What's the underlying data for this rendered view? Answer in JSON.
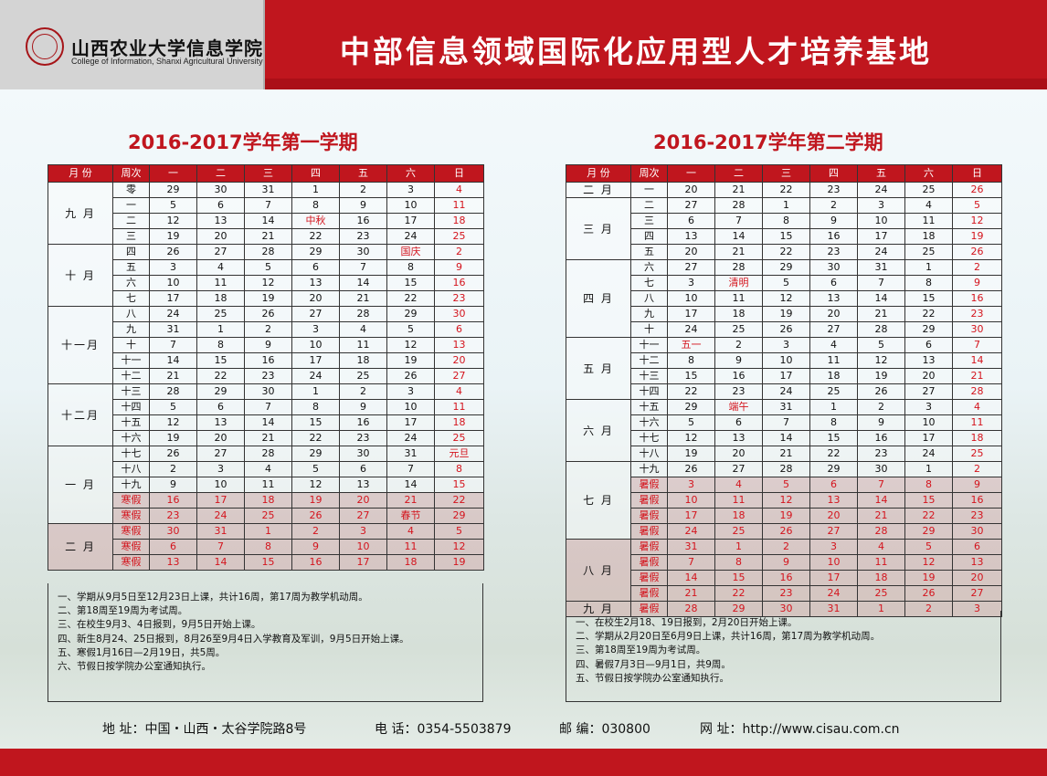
{
  "header": {
    "college_cn": "山西农业大学信息学院",
    "college_en": "College of Information, Shanxi Agricultural University",
    "headline": "中部信息领域国际化应用型人才培养基地"
  },
  "columns": [
    "月 份",
    "周次",
    "一",
    "二",
    "三",
    "四",
    "五",
    "六",
    "日"
  ],
  "semester1": {
    "title": "2016-2017学年第一学期",
    "months": [
      {
        "label": "九 月",
        "weeks": [
          {
            "w": "零",
            "d": [
              "29",
              "30",
              "31",
              "1",
              "2",
              "3",
              "4"
            ]
          },
          {
            "w": "一",
            "d": [
              "5",
              "6",
              "7",
              "8",
              "9",
              "10",
              "11"
            ]
          },
          {
            "w": "二",
            "d": [
              "12",
              "13",
              "14",
              "中秋",
              "16",
              "17",
              "18"
            ]
          },
          {
            "w": "三",
            "d": [
              "19",
              "20",
              "21",
              "22",
              "23",
              "24",
              "25"
            ]
          }
        ]
      },
      {
        "label": "十 月",
        "weeks": [
          {
            "w": "四",
            "d": [
              "26",
              "27",
              "28",
              "29",
              "30",
              "国庆",
              "2"
            ]
          },
          {
            "w": "五",
            "d": [
              "3",
              "4",
              "5",
              "6",
              "7",
              "8",
              "9"
            ]
          },
          {
            "w": "六",
            "d": [
              "10",
              "11",
              "12",
              "13",
              "14",
              "15",
              "16"
            ]
          },
          {
            "w": "七",
            "d": [
              "17",
              "18",
              "19",
              "20",
              "21",
              "22",
              "23"
            ]
          }
        ]
      },
      {
        "label": "十一月",
        "weeks": [
          {
            "w": "八",
            "d": [
              "24",
              "25",
              "26",
              "27",
              "28",
              "29",
              "30"
            ]
          },
          {
            "w": "九",
            "d": [
              "31",
              "1",
              "2",
              "3",
              "4",
              "5",
              "6"
            ]
          },
          {
            "w": "十",
            "d": [
              "7",
              "8",
              "9",
              "10",
              "11",
              "12",
              "13"
            ]
          },
          {
            "w": "十一",
            "d": [
              "14",
              "15",
              "16",
              "17",
              "18",
              "19",
              "20"
            ]
          },
          {
            "w": "十二",
            "d": [
              "21",
              "22",
              "23",
              "24",
              "25",
              "26",
              "27"
            ]
          }
        ]
      },
      {
        "label": "十二月",
        "weeks": [
          {
            "w": "十三",
            "d": [
              "28",
              "29",
              "30",
              "1",
              "2",
              "3",
              "4"
            ]
          },
          {
            "w": "十四",
            "d": [
              "5",
              "6",
              "7",
              "8",
              "9",
              "10",
              "11"
            ]
          },
          {
            "w": "十五",
            "d": [
              "12",
              "13",
              "14",
              "15",
              "16",
              "17",
              "18"
            ]
          },
          {
            "w": "十六",
            "d": [
              "19",
              "20",
              "21",
              "22",
              "23",
              "24",
              "25"
            ]
          }
        ]
      },
      {
        "label": "一 月",
        "weeks": [
          {
            "w": "十七",
            "d": [
              "26",
              "27",
              "28",
              "29",
              "30",
              "31",
              "元旦"
            ]
          },
          {
            "w": "十八",
            "d": [
              "2",
              "3",
              "4",
              "5",
              "6",
              "7",
              "8"
            ]
          },
          {
            "w": "十九",
            "d": [
              "9",
              "10",
              "11",
              "12",
              "13",
              "14",
              "15"
            ]
          },
          {
            "w": "寒假",
            "d": [
              "16",
              "17",
              "18",
              "19",
              "20",
              "21",
              "22"
            ]
          },
          {
            "w": "寒假",
            "d": [
              "23",
              "24",
              "25",
              "26",
              "27",
              "春节",
              "29"
            ]
          }
        ]
      },
      {
        "label": "二 月",
        "weeks": [
          {
            "w": "寒假",
            "d": [
              "30",
              "31",
              "1",
              "2",
              "3",
              "4",
              "5"
            ]
          },
          {
            "w": "寒假",
            "d": [
              "6",
              "7",
              "8",
              "9",
              "10",
              "11",
              "12"
            ]
          },
          {
            "w": "寒假",
            "d": [
              "13",
              "14",
              "15",
              "16",
              "17",
              "18",
              "19"
            ]
          }
        ]
      }
    ],
    "notes": [
      "一、学期从9月5日至12月23日上课，共计16周，第17周为教学机动周。",
      "二、第18周至19周为考试周。",
      "三、在校生9月3、4日报到，9月5日开始上课。",
      "四、新生8月24、25日报到，8月26至9月4日入学教育及军训，9月5日开始上课。",
      "五、寒假1月16日—2月19日，共5周。",
      "六、节假日按学院办公室通知执行。"
    ]
  },
  "semester2": {
    "title": "2016-2017学年第二学期",
    "months": [
      {
        "label": "二 月",
        "weeks": [
          {
            "w": "一",
            "d": [
              "20",
              "21",
              "22",
              "23",
              "24",
              "25",
              "26"
            ]
          }
        ]
      },
      {
        "label": "三 月",
        "weeks": [
          {
            "w": "二",
            "d": [
              "27",
              "28",
              "1",
              "2",
              "3",
              "4",
              "5"
            ]
          },
          {
            "w": "三",
            "d": [
              "6",
              "7",
              "8",
              "9",
              "10",
              "11",
              "12"
            ]
          },
          {
            "w": "四",
            "d": [
              "13",
              "14",
              "15",
              "16",
              "17",
              "18",
              "19"
            ]
          },
          {
            "w": "五",
            "d": [
              "20",
              "21",
              "22",
              "23",
              "24",
              "25",
              "26"
            ]
          }
        ]
      },
      {
        "label": "四 月",
        "weeks": [
          {
            "w": "六",
            "d": [
              "27",
              "28",
              "29",
              "30",
              "31",
              "1",
              "2"
            ]
          },
          {
            "w": "七",
            "d": [
              "3",
              "清明",
              "5",
              "6",
              "7",
              "8",
              "9"
            ]
          },
          {
            "w": "八",
            "d": [
              "10",
              "11",
              "12",
              "13",
              "14",
              "15",
              "16"
            ]
          },
          {
            "w": "九",
            "d": [
              "17",
              "18",
              "19",
              "20",
              "21",
              "22",
              "23"
            ]
          },
          {
            "w": "十",
            "d": [
              "24",
              "25",
              "26",
              "27",
              "28",
              "29",
              "30"
            ]
          }
        ]
      },
      {
        "label": "五 月",
        "weeks": [
          {
            "w": "十一",
            "d": [
              "五一",
              "2",
              "3",
              "4",
              "5",
              "6",
              "7"
            ]
          },
          {
            "w": "十二",
            "d": [
              "8",
              "9",
              "10",
              "11",
              "12",
              "13",
              "14"
            ]
          },
          {
            "w": "十三",
            "d": [
              "15",
              "16",
              "17",
              "18",
              "19",
              "20",
              "21"
            ]
          },
          {
            "w": "十四",
            "d": [
              "22",
              "23",
              "24",
              "25",
              "26",
              "27",
              "28"
            ]
          }
        ]
      },
      {
        "label": "六 月",
        "weeks": [
          {
            "w": "十五",
            "d": [
              "29",
              "端午",
              "31",
              "1",
              "2",
              "3",
              "4"
            ]
          },
          {
            "w": "十六",
            "d": [
              "5",
              "6",
              "7",
              "8",
              "9",
              "10",
              "11"
            ]
          },
          {
            "w": "十七",
            "d": [
              "12",
              "13",
              "14",
              "15",
              "16",
              "17",
              "18"
            ]
          },
          {
            "w": "十八",
            "d": [
              "19",
              "20",
              "21",
              "22",
              "23",
              "24",
              "25"
            ]
          }
        ]
      },
      {
        "label": "七 月",
        "weeks": [
          {
            "w": "十九",
            "d": [
              "26",
              "27",
              "28",
              "29",
              "30",
              "1",
              "2"
            ]
          },
          {
            "w": "暑假",
            "d": [
              "3",
              "4",
              "5",
              "6",
              "7",
              "8",
              "9"
            ]
          },
          {
            "w": "暑假",
            "d": [
              "10",
              "11",
              "12",
              "13",
              "14",
              "15",
              "16"
            ]
          },
          {
            "w": "暑假",
            "d": [
              "17",
              "18",
              "19",
              "20",
              "21",
              "22",
              "23"
            ]
          },
          {
            "w": "暑假",
            "d": [
              "24",
              "25",
              "26",
              "27",
              "28",
              "29",
              "30"
            ]
          }
        ]
      },
      {
        "label": "八 月",
        "weeks": [
          {
            "w": "暑假",
            "d": [
              "31",
              "1",
              "2",
              "3",
              "4",
              "5",
              "6"
            ]
          },
          {
            "w": "暑假",
            "d": [
              "7",
              "8",
              "9",
              "10",
              "11",
              "12",
              "13"
            ]
          },
          {
            "w": "暑假",
            "d": [
              "14",
              "15",
              "16",
              "17",
              "18",
              "19",
              "20"
            ]
          },
          {
            "w": "暑假",
            "d": [
              "21",
              "22",
              "23",
              "24",
              "25",
              "26",
              "27"
            ]
          }
        ]
      },
      {
        "label": "九 月",
        "weeks": [
          {
            "w": "暑假",
            "d": [
              "28",
              "29",
              "30",
              "31",
              "1",
              "2",
              "3"
            ]
          }
        ]
      }
    ],
    "notes": [
      "一、在校生2月18、19日报到，2月20日开始上课。",
      "二、学期从2月20日至6月9日上课，共计16周，第17周为教学机动周。",
      "三、第18周至19周为考试周。",
      "四、暑假7月3日—9月1日，共9周。",
      "五、节假日按学院办公室通知执行。"
    ]
  },
  "footer": {
    "address": "地 址：中国・山西・太谷学院路8号",
    "phone": "电 话：0354-5503879",
    "postcode": "邮 编：030800",
    "website": "网 址：http://www.cisau.com.cn"
  },
  "colors": {
    "brand_red": "#c0161e",
    "holiday_red": "#d4141d"
  }
}
